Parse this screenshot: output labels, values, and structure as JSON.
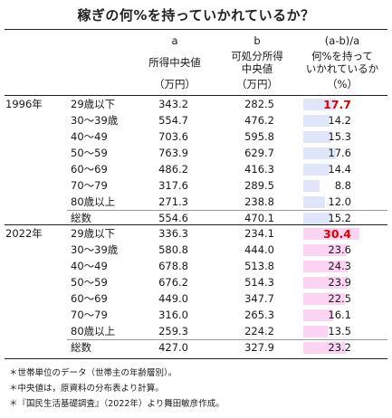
{
  "title": "稼ぎの何%を持っていかれているか？",
  "headers": {
    "a_letter": "a",
    "a_name": "所得中央値",
    "a_unit": "（万円）",
    "b_letter": "b",
    "b_name1": "可処分所得",
    "b_name2": "中央値",
    "b_unit": "（万円）",
    "c_formula": "(a-b)/a",
    "c_name1": "何%を持って",
    "c_name2": "いかれているか",
    "c_unit": "（%）"
  },
  "chart_data": {
    "type": "table",
    "title": "稼ぎの何%を持っていかれているか？",
    "columns": [
      "所得中央値（万円）",
      "可処分所得中央値（万円）",
      "何%を持っていかれているか（%）"
    ],
    "pct_scale_max": 31,
    "groups": [
      {
        "year": "1996年",
        "bar_color": "#dfe6fa",
        "rows": [
          {
            "label": "29歳以下",
            "a": "343.2",
            "b": "282.5",
            "pct": 17.7,
            "pct_text": "17.7",
            "highlight": true
          },
          {
            "label": "30～39歳",
            "a": "554.7",
            "b": "476.2",
            "pct": 14.2,
            "pct_text": "14.2",
            "highlight": false
          },
          {
            "label": "40～49",
            "a": "703.6",
            "b": "595.8",
            "pct": 15.3,
            "pct_text": "15.3",
            "highlight": false
          },
          {
            "label": "50～59",
            "a": "763.9",
            "b": "629.7",
            "pct": 17.6,
            "pct_text": "17.6",
            "highlight": false
          },
          {
            "label": "60～69",
            "a": "486.2",
            "b": "416.3",
            "pct": 14.4,
            "pct_text": "14.4",
            "highlight": false
          },
          {
            "label": "70～79",
            "a": "317.6",
            "b": "289.5",
            "pct": 8.8,
            "pct_text": "8.8",
            "highlight": false
          },
          {
            "label": "80歳以上",
            "a": "271.3",
            "b": "238.8",
            "pct": 12.0,
            "pct_text": "12.0",
            "highlight": false
          },
          {
            "label": "総数",
            "a": "554.6",
            "b": "470.1",
            "pct": 15.2,
            "pct_text": "15.2",
            "highlight": false
          }
        ]
      },
      {
        "year": "2022年",
        "bar_color": "#fcd3f2",
        "rows": [
          {
            "label": "29歳以下",
            "a": "336.3",
            "b": "234.1",
            "pct": 30.4,
            "pct_text": "30.4",
            "highlight": true
          },
          {
            "label": "30～39歳",
            "a": "580.8",
            "b": "444.0",
            "pct": 23.6,
            "pct_text": "23.6",
            "highlight": false
          },
          {
            "label": "40～49",
            "a": "678.8",
            "b": "513.8",
            "pct": 24.3,
            "pct_text": "24.3",
            "highlight": false
          },
          {
            "label": "50～59",
            "a": "676.2",
            "b": "514.3",
            "pct": 23.9,
            "pct_text": "23.9",
            "highlight": false
          },
          {
            "label": "60～69",
            "a": "449.0",
            "b": "347.7",
            "pct": 22.5,
            "pct_text": "22.5",
            "highlight": false
          },
          {
            "label": "70～79",
            "a": "316.0",
            "b": "265.3",
            "pct": 16.1,
            "pct_text": "16.1",
            "highlight": false
          },
          {
            "label": "80歳以上",
            "a": "259.3",
            "b": "224.2",
            "pct": 13.5,
            "pct_text": "13.5",
            "highlight": false
          },
          {
            "label": "総数",
            "a": "427.0",
            "b": "327.9",
            "pct": 23.2,
            "pct_text": "23.2",
            "highlight": false
          }
        ]
      }
    ]
  },
  "notes": [
    "＊世帯単位のデータ（世帯主の年齢層別）。",
    "＊中央値は，原資料の分布表より計算。",
    "＊『国民生活基礎調査』（2022年）より舞田敏彦作成。"
  ]
}
